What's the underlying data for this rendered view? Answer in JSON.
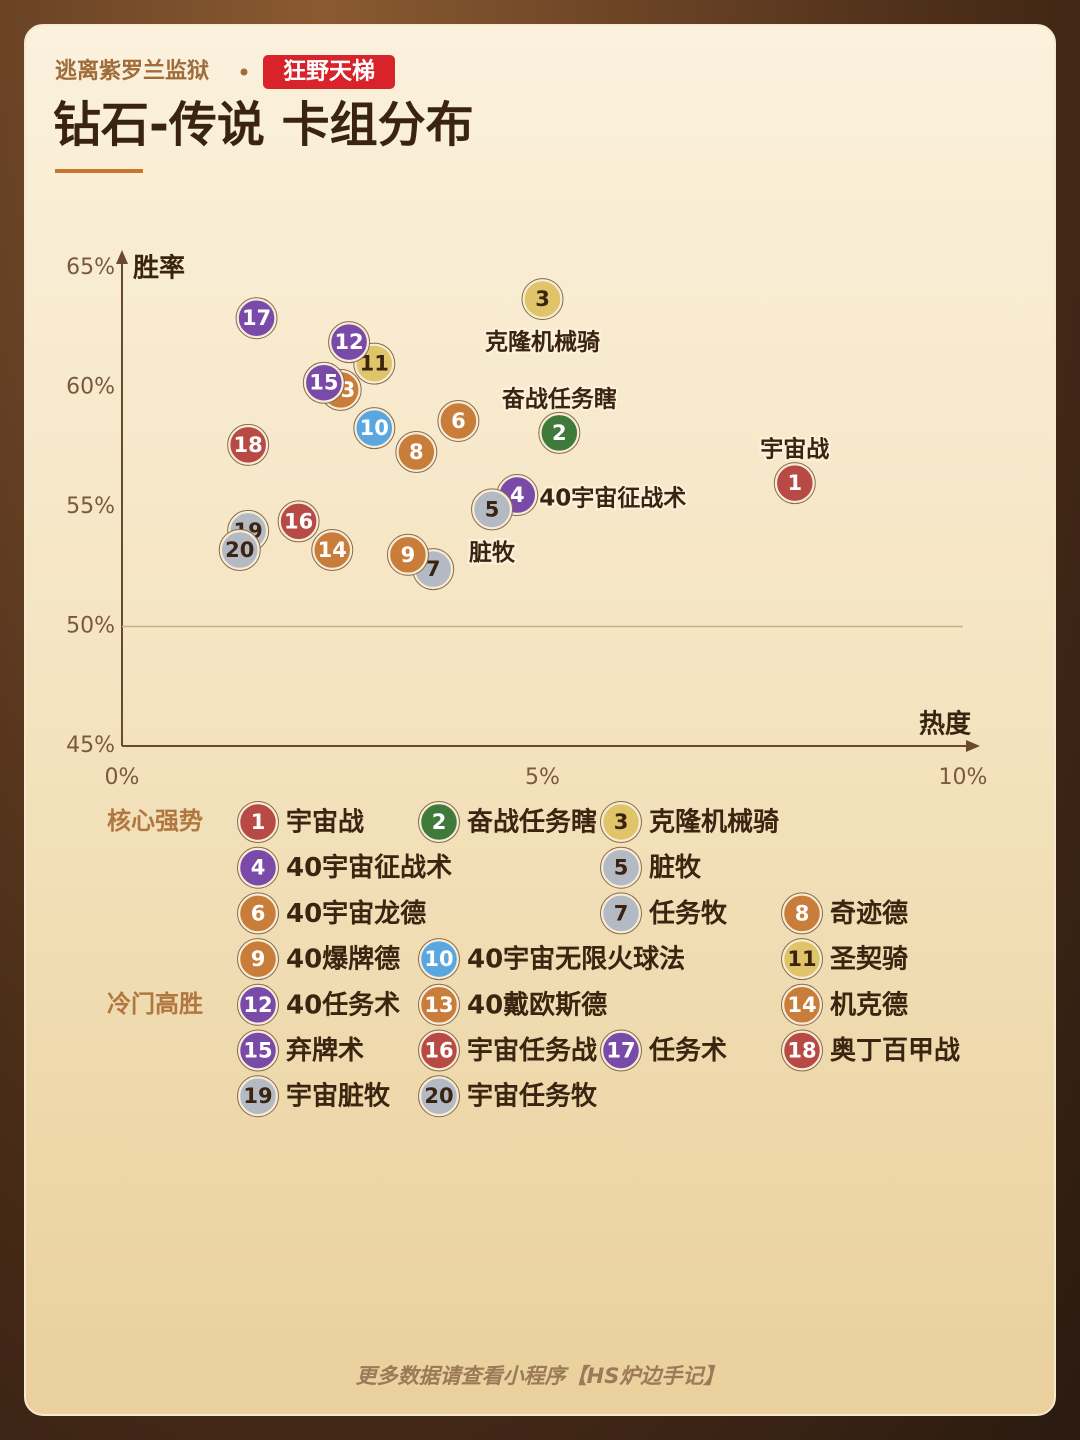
{
  "chart_data": {
    "type": "scatter",
    "subtitle": "逃离紫罗兰监狱",
    "tag": "狂野天梯",
    "title": "钻石-传说 卡组分布",
    "xlabel": "热度",
    "ylabel": "胜率",
    "xlim": [
      0,
      10
    ],
    "ylim": [
      45,
      65
    ],
    "xticks": [
      {
        "value": 0,
        "label": "0%"
      },
      {
        "value": 5,
        "label": "5%"
      },
      {
        "value": 10,
        "label": "10%"
      }
    ],
    "yticks": [
      {
        "value": 45,
        "label": "45%"
      },
      {
        "value": 50,
        "label": "50%"
      },
      {
        "value": 55,
        "label": "55%"
      },
      {
        "value": 60,
        "label": "60%"
      },
      {
        "value": 65,
        "label": "65%"
      }
    ],
    "reference_line": 50,
    "series": [
      {
        "name": "核心强势",
        "points": [
          {
            "id": 1,
            "name": "宇宙战",
            "x": 8.0,
            "y": 56.0,
            "color": "#b84a45",
            "annotated": true
          },
          {
            "id": 2,
            "name": "奋战任务瞎",
            "x": 5.2,
            "y": 58.1,
            "color": "#3f7a3a",
            "annotated": true
          },
          {
            "id": 3,
            "name": "克隆机械骑",
            "x": 5.0,
            "y": 63.7,
            "color": "#e0c46a",
            "annotated": true
          },
          {
            "id": 4,
            "name": "40宇宙征战术",
            "x": 4.7,
            "y": 55.5,
            "color": "#7a4aa8",
            "annotated": true
          },
          {
            "id": 5,
            "name": "脏牧",
            "x": 4.4,
            "y": 54.9,
            "color": "#b3bac4",
            "annotated": true
          },
          {
            "id": 6,
            "name": "40宇宙龙德",
            "x": 4.0,
            "y": 58.6,
            "color": "#c97d3a"
          },
          {
            "id": 7,
            "name": "任务牧",
            "x": 3.7,
            "y": 52.4,
            "color": "#b3bac4"
          },
          {
            "id": 8,
            "name": "奇迹德",
            "x": 3.5,
            "y": 57.3,
            "color": "#c97d3a"
          },
          {
            "id": 9,
            "name": "40爆牌德",
            "x": 3.4,
            "y": 53.0,
            "color": "#c97d3a"
          },
          {
            "id": 10,
            "name": "40宇宙无限火球法",
            "x": 3.0,
            "y": 58.3,
            "color": "#5aa6e0"
          },
          {
            "id": 11,
            "name": "圣契骑",
            "x": 3.0,
            "y": 61.0,
            "color": "#e0c46a"
          }
        ]
      },
      {
        "name": "冷门高胜",
        "points": [
          {
            "id": 12,
            "name": "40任务术",
            "x": 2.7,
            "y": 61.9,
            "color": "#7a4aa8"
          },
          {
            "id": 13,
            "name": "40戴欧斯德",
            "x": 2.6,
            "y": 59.9,
            "color": "#c97d3a"
          },
          {
            "id": 14,
            "name": "机克德",
            "x": 2.5,
            "y": 53.2,
            "color": "#c97d3a"
          },
          {
            "id": 15,
            "name": "弃牌术",
            "x": 2.4,
            "y": 60.2,
            "color": "#7a4aa8"
          },
          {
            "id": 16,
            "name": "宇宙任务战",
            "x": 2.1,
            "y": 54.4,
            "color": "#b84a45"
          },
          {
            "id": 17,
            "name": "任务术",
            "x": 1.6,
            "y": 62.9,
            "color": "#7a4aa8"
          },
          {
            "id": 18,
            "name": "奥丁百甲战",
            "x": 1.5,
            "y": 57.6,
            "color": "#b84a45"
          },
          {
            "id": 19,
            "name": "宇宙脏牧",
            "x": 1.5,
            "y": 54.0,
            "color": "#b3bac4"
          },
          {
            "id": 20,
            "name": "宇宙任务牧",
            "x": 1.4,
            "y": 53.2,
            "color": "#b3bac4"
          }
        ]
      }
    ]
  },
  "footer": "更多数据请查看小程序【HS炉边手记】"
}
